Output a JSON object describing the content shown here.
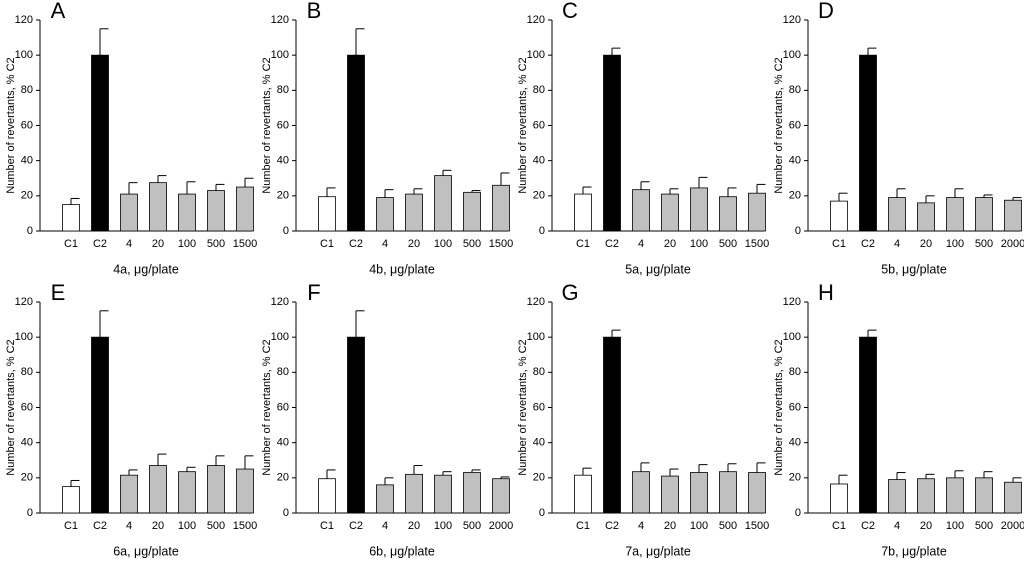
{
  "chart_data": [
    {
      "type": "bar",
      "panel": "A",
      "xlabel": "4a, μg/plate",
      "ylabel": "Number of revertants, % C2",
      "categories": [
        "C1",
        "C2",
        "4",
        "20",
        "100",
        "500",
        "1500"
      ],
      "values": [
        15,
        100,
        21,
        27.5,
        21,
        23,
        25
      ],
      "errors": [
        3.5,
        15,
        6.5,
        4,
        7,
        3.5,
        5
      ],
      "colors": [
        "#ffffff",
        "#000000",
        "#c0c0c0",
        "#c0c0c0",
        "#c0c0c0",
        "#c0c0c0",
        "#c0c0c0"
      ],
      "ylim": [
        0,
        120
      ],
      "yticks": [
        0,
        20,
        40,
        60,
        80,
        100,
        120
      ]
    },
    {
      "type": "bar",
      "panel": "B",
      "xlabel": "4b, μg/plate",
      "ylabel": "Number of revertants, % C2",
      "categories": [
        "C1",
        "C2",
        "4",
        "20",
        "100",
        "500",
        "1500"
      ],
      "values": [
        19.5,
        100,
        19,
        21,
        31.5,
        22,
        26
      ],
      "errors": [
        5,
        15,
        4.5,
        3,
        3,
        1,
        7
      ],
      "colors": [
        "#ffffff",
        "#000000",
        "#c0c0c0",
        "#c0c0c0",
        "#c0c0c0",
        "#c0c0c0",
        "#c0c0c0"
      ],
      "ylim": [
        0,
        120
      ],
      "yticks": [
        0,
        20,
        40,
        60,
        80,
        100,
        120
      ]
    },
    {
      "type": "bar",
      "panel": "C",
      "xlabel": "5a, μg/plate",
      "ylabel": "Number of revertants, % C2",
      "categories": [
        "C1",
        "C2",
        "4",
        "20",
        "100",
        "500",
        "1500"
      ],
      "values": [
        21,
        100,
        23.5,
        21,
        24.5,
        19.5,
        21.5
      ],
      "errors": [
        4,
        4,
        4.5,
        3,
        6,
        5,
        5
      ],
      "colors": [
        "#ffffff",
        "#000000",
        "#c0c0c0",
        "#c0c0c0",
        "#c0c0c0",
        "#c0c0c0",
        "#c0c0c0"
      ],
      "ylim": [
        0,
        120
      ],
      "yticks": [
        0,
        20,
        40,
        60,
        80,
        100,
        120
      ]
    },
    {
      "type": "bar",
      "panel": "D",
      "xlabel": "5b, μg/plate",
      "ylabel": "Number of revertants, % C2",
      "categories": [
        "C1",
        "C2",
        "4",
        "20",
        "100",
        "500",
        "2000"
      ],
      "values": [
        17,
        100,
        19,
        16,
        19,
        19,
        17.5
      ],
      "errors": [
        4.5,
        4,
        5,
        4,
        5,
        1.5,
        1.5
      ],
      "colors": [
        "#ffffff",
        "#000000",
        "#c0c0c0",
        "#c0c0c0",
        "#c0c0c0",
        "#c0c0c0",
        "#c0c0c0"
      ],
      "ylim": [
        0,
        120
      ],
      "yticks": [
        0,
        20,
        40,
        60,
        80,
        100,
        120
      ]
    },
    {
      "type": "bar",
      "panel": "E",
      "xlabel": "6a, μg/plate",
      "ylabel": "Number of revertants, % C2",
      "categories": [
        "C1",
        "C2",
        "4",
        "20",
        "100",
        "500",
        "1500"
      ],
      "values": [
        15,
        100,
        21.5,
        27,
        23.5,
        27,
        25
      ],
      "errors": [
        3.5,
        15,
        3,
        6.5,
        2.5,
        5.5,
        7.5
      ],
      "colors": [
        "#ffffff",
        "#000000",
        "#c0c0c0",
        "#c0c0c0",
        "#c0c0c0",
        "#c0c0c0",
        "#c0c0c0"
      ],
      "ylim": [
        0,
        120
      ],
      "yticks": [
        0,
        20,
        40,
        60,
        80,
        100,
        120
      ]
    },
    {
      "type": "bar",
      "panel": "F",
      "xlabel": "6b, μg/plate",
      "ylabel": "Number of revertants, % C2",
      "categories": [
        "C1",
        "C2",
        "4",
        "20",
        "100",
        "500",
        "2000"
      ],
      "values": [
        19.5,
        100,
        16,
        22,
        21.5,
        23,
        19.5
      ],
      "errors": [
        5,
        15,
        4,
        5,
        2,
        1.5,
        1
      ],
      "colors": [
        "#ffffff",
        "#000000",
        "#c0c0c0",
        "#c0c0c0",
        "#c0c0c0",
        "#c0c0c0",
        "#c0c0c0"
      ],
      "ylim": [
        0,
        120
      ],
      "yticks": [
        0,
        20,
        40,
        60,
        80,
        100,
        120
      ]
    },
    {
      "type": "bar",
      "panel": "G",
      "xlabel": "7a, μg/plate",
      "ylabel": "Number of revertants, % C2",
      "categories": [
        "C1",
        "C2",
        "4",
        "20",
        "100",
        "500",
        "1500"
      ],
      "values": [
        21.5,
        100,
        23.5,
        21,
        23,
        23.5,
        23
      ],
      "errors": [
        4,
        4,
        5,
        4,
        4.5,
        4.5,
        5.5
      ],
      "colors": [
        "#ffffff",
        "#000000",
        "#c0c0c0",
        "#c0c0c0",
        "#c0c0c0",
        "#c0c0c0",
        "#c0c0c0"
      ],
      "ylim": [
        0,
        120
      ],
      "yticks": [
        0,
        20,
        40,
        60,
        80,
        100,
        120
      ]
    },
    {
      "type": "bar",
      "panel": "H",
      "xlabel": "7b, μg/plate",
      "ylabel": "Number of revertants, % C2",
      "categories": [
        "C1",
        "C2",
        "4",
        "20",
        "100",
        "500",
        "2000"
      ],
      "values": [
        16.5,
        100,
        19,
        19.5,
        20,
        20,
        17.5
      ],
      "errors": [
        5,
        4,
        4,
        2.5,
        4,
        3.5,
        2.5
      ],
      "colors": [
        "#ffffff",
        "#000000",
        "#c0c0c0",
        "#c0c0c0",
        "#c0c0c0",
        "#c0c0c0",
        "#c0c0c0"
      ],
      "ylim": [
        0,
        120
      ],
      "yticks": [
        0,
        20,
        40,
        60,
        80,
        100,
        120
      ]
    }
  ]
}
